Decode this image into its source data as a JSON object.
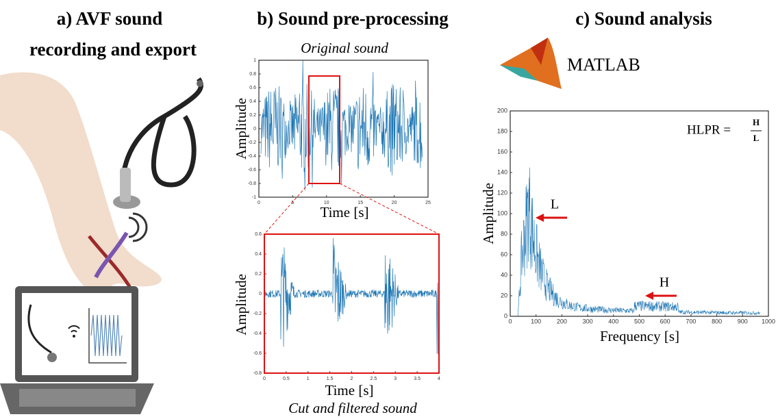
{
  "panel_a": {
    "title_line1": "a) AVF sound",
    "title_line2": "recording and export"
  },
  "panel_b": {
    "title": "b) Sound pre-processing",
    "top": {
      "caption": "Original sound",
      "y_label": "Amplitude",
      "x_label": "Time [s]",
      "yticks": [
        "-1",
        "-0.8",
        "-0.6",
        "-0.4",
        "-0.2",
        "0",
        "0.2",
        "0.4",
        "0.6",
        "0.8",
        "1"
      ],
      "xticks": [
        "0",
        "5",
        "10",
        "15",
        "20",
        "25"
      ]
    },
    "bottom": {
      "caption": "Cut and filtered sound",
      "y_label": "Amplitude",
      "x_label": "Time [s]",
      "yticks": [
        "-0.8",
        "-0.6",
        "-0.4",
        "-0.2",
        "0",
        "0.2",
        "0.4",
        "0.6"
      ],
      "xticks": [
        "0",
        "0.5",
        "1",
        "1.5",
        "2",
        "2.5",
        "3",
        "3.5",
        "4"
      ]
    }
  },
  "panel_c": {
    "title": "c) Sound analysis",
    "logo": "MATLAB",
    "y_label": "Amplitude",
    "x_label": "Frequency [s]",
    "yticks": [
      "0",
      "20",
      "40",
      "60",
      "80",
      "100",
      "120",
      "140",
      "160",
      "180",
      "200"
    ],
    "xticks": [
      "0",
      "100",
      "200",
      "300",
      "400",
      "500",
      "600",
      "700",
      "800",
      "900",
      "1000"
    ],
    "formula": {
      "left": "HLPR =",
      "numerator": "H",
      "denominator": "L"
    },
    "marker_low": "L",
    "marker_high": "H"
  }
}
